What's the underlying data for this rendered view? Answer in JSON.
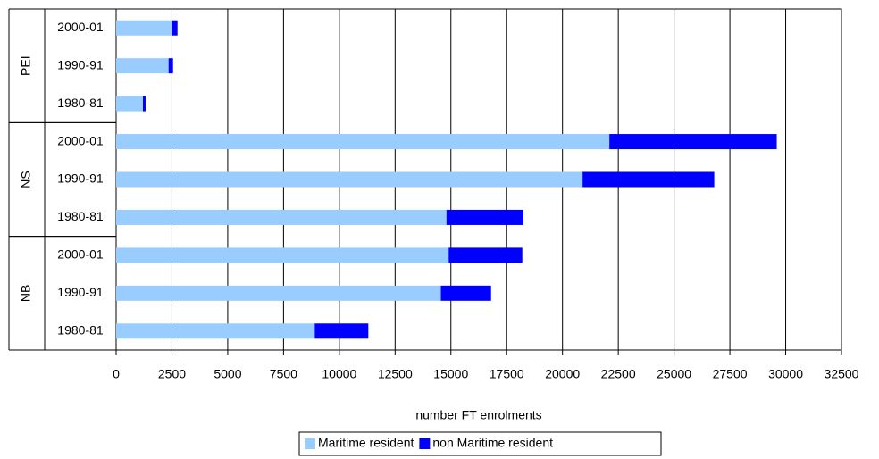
{
  "chart_data": {
    "type": "stacked-bar-horizontal",
    "x_label": "number FT enrolments",
    "groups": [
      "PEI",
      "NS",
      "NB"
    ],
    "categories": [
      "2000-01",
      "1990-91",
      "1980-81",
      "2000-01",
      "1990-91",
      "1980-81",
      "2000-01",
      "1990-91",
      "1980-81"
    ],
    "series": [
      {
        "name": "Maritime resident",
        "color": "#99ccff",
        "values": [
          2500,
          2350,
          1200,
          22100,
          20900,
          14800,
          14900,
          14550,
          8900
        ]
      },
      {
        "name": "non Maritime resident",
        "color": "#0000ff",
        "values": [
          250,
          200,
          120,
          7500,
          5900,
          3450,
          3300,
          2250,
          2400
        ]
      }
    ],
    "xlim": [
      0,
      32500
    ],
    "xticks": [
      0,
      2500,
      5000,
      7500,
      10000,
      12500,
      15000,
      17500,
      20000,
      22500,
      25000,
      27500,
      30000,
      32500
    ],
    "grid": true,
    "legend": "bottom"
  }
}
